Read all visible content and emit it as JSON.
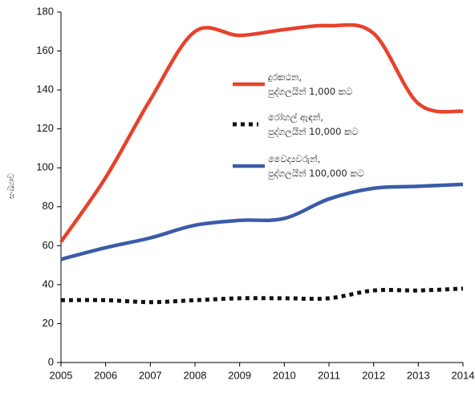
{
  "chart_data": {
    "type": "line",
    "y_label": "සංඛ්‍යාව",
    "x": [
      2005,
      2006,
      2007,
      2008,
      2009,
      2010,
      2011,
      2012,
      2013,
      2014
    ],
    "xlim": [
      2005,
      2014
    ],
    "xticks": [
      2005,
      2006,
      2007,
      2008,
      2009,
      2010,
      2011,
      2012,
      2013,
      2014
    ],
    "ylim": [
      0,
      180
    ],
    "yticks": [
      0,
      20,
      40,
      60,
      80,
      100,
      120,
      140,
      160,
      180
    ],
    "grid": false,
    "series": [
      {
        "name": "දුරකථන,\nපුද්ගලයින් 1,000 කට",
        "color": "#e8412c",
        "style": "solid",
        "values": [
          62,
          95,
          135,
          170,
          168,
          171,
          173,
          169,
          133,
          129
        ]
      },
      {
        "name": "රෝහල් ඇඳන්,\nපුද්ගලයින් 10,000 කට",
        "color": "#111111",
        "style": "dotted",
        "values": [
          32,
          32,
          31,
          32,
          33,
          33,
          33,
          37,
          37,
          38
        ]
      },
      {
        "name": "වෛද්‍යවරුන්,\nපුද්ගලයින් 100,000 කට",
        "color": "#3a5ba9",
        "style": "solid",
        "values": [
          53,
          59,
          64,
          70.5,
          73,
          74,
          84,
          89.5,
          90.5,
          91.5
        ]
      }
    ]
  }
}
